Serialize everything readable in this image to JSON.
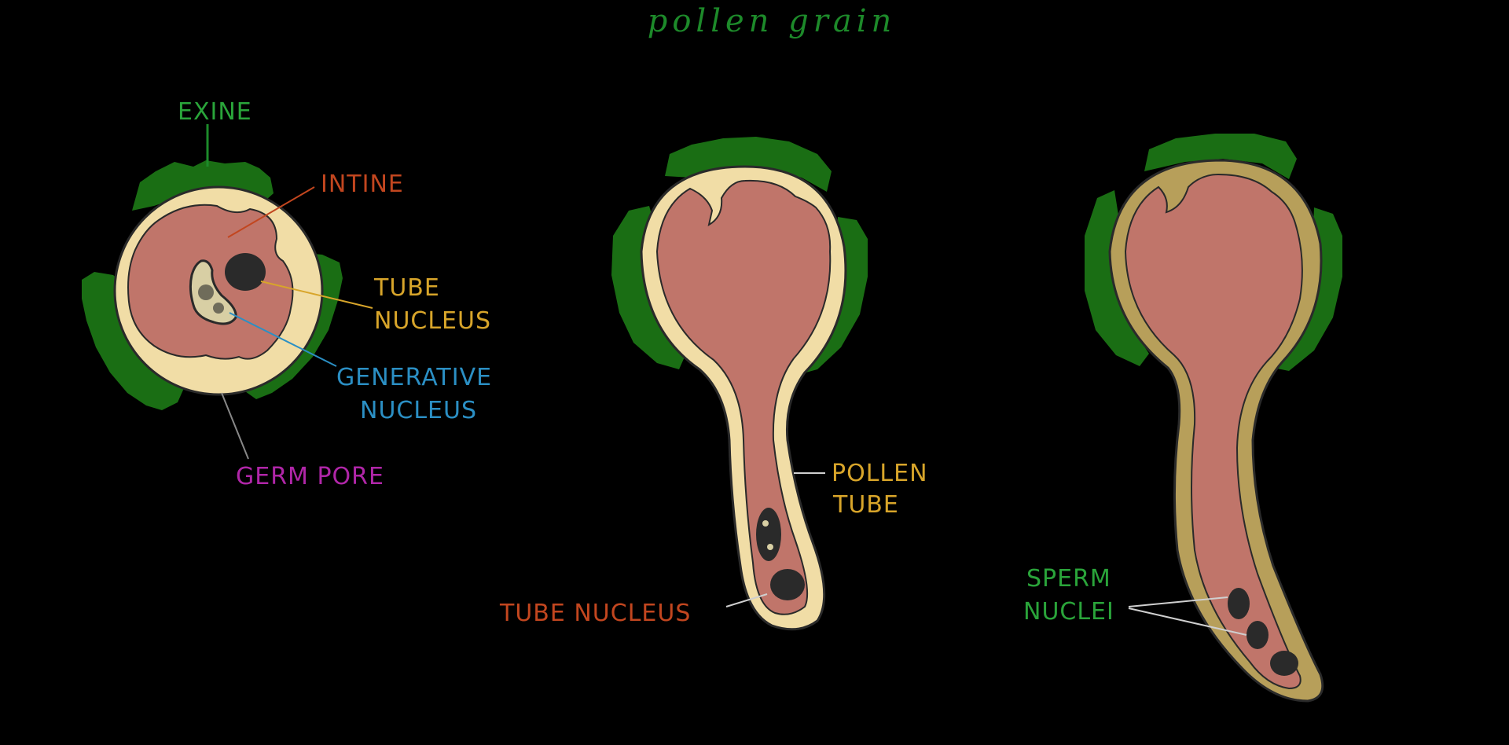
{
  "title": "pollen grain",
  "colors": {
    "background": "#000000",
    "exine": "#1a6e14",
    "intine_light": "#f1dda6",
    "intine_dark": "#b79f5a",
    "cytoplasm": "#c0756a",
    "nucleus": "#2a2a2a",
    "title": "#1d8a2a",
    "green_label": "#2aa43a",
    "orange_label": "#c2461f",
    "yellow_label": "#d8a52a",
    "blue_label": "#2b8fc4",
    "magenta_label": "#b026a8"
  },
  "stage1": {
    "exine": "EXINE",
    "intine": "INTINE",
    "tube_nucleus_1": "TUBE",
    "tube_nucleus_2": "NUCLEUS",
    "generative_nucleus_1": "GENERATIVE",
    "generative_nucleus_2": "NUCLEUS",
    "germ_pore": "GERM  PORE"
  },
  "stage2": {
    "pollen_tube_1": "POLLEN",
    "pollen_tube_2": "TUBE",
    "tube_nucleus": "TUBE  NUCLEUS"
  },
  "stage3": {
    "sperm_nuclei_1": "SPERM",
    "sperm_nuclei_2": "NUCLEI"
  }
}
